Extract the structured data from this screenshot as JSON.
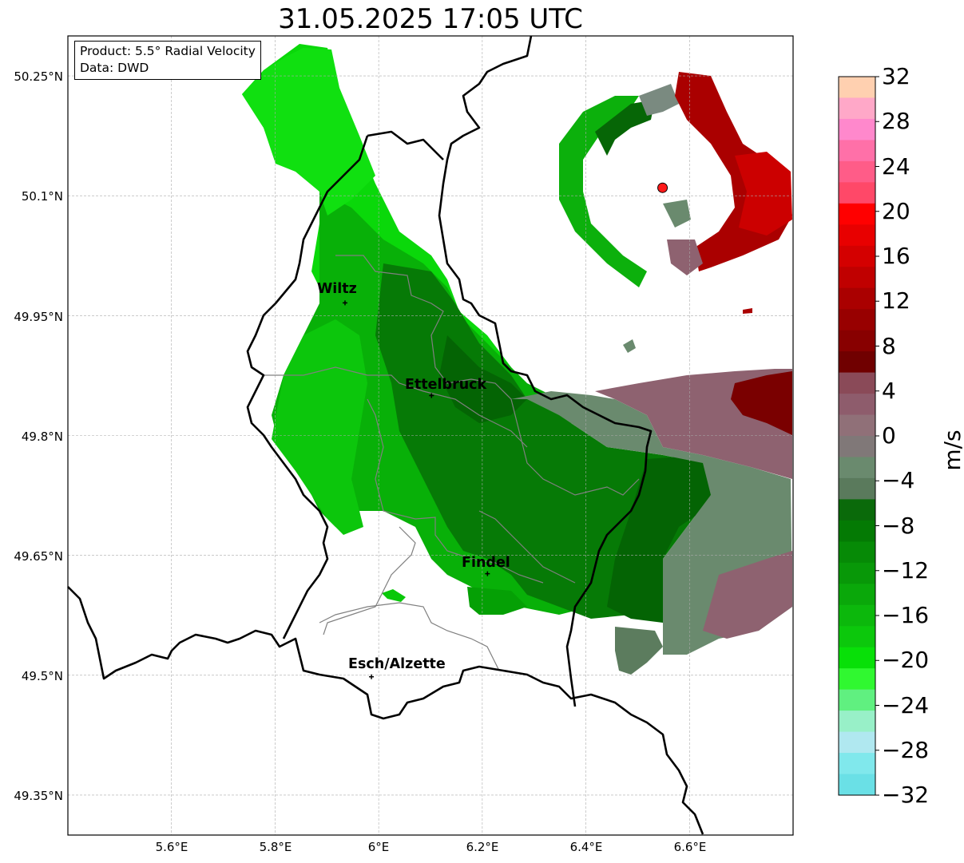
{
  "title": "31.05.2025 17:05 UTC",
  "info": {
    "product": "Product: 5.5° Radial Velocity",
    "data": "Data: DWD"
  },
  "cities": [
    {
      "name": "Wiltz",
      "lon": 5.935,
      "lat": 49.966
    },
    {
      "name": "Ettelbruck",
      "lon": 6.102,
      "lat": 49.85
    },
    {
      "name": "Findel",
      "lon": 6.21,
      "lat": 49.627
    },
    {
      "name": "Esch/Alzette",
      "lon": 5.986,
      "lat": 49.498
    }
  ],
  "radar_site": {
    "lon": 6.548,
    "lat": 50.11
  },
  "map_extent": {
    "lon_min": 5.4,
    "lon_max": 6.8,
    "lat_min": 49.3,
    "lat_max": 50.3
  },
  "lat_ticks": [
    {
      "value": 50.25,
      "label": "50.25°N"
    },
    {
      "value": 50.1,
      "label": "50.1°N"
    },
    {
      "value": 49.95,
      "label": "49.95°N"
    },
    {
      "value": 49.8,
      "label": "49.8°N"
    },
    {
      "value": 49.65,
      "label": "49.65°N"
    },
    {
      "value": 49.5,
      "label": "49.5°N"
    },
    {
      "value": 49.35,
      "label": "49.35°N"
    }
  ],
  "lon_ticks": [
    {
      "value": 5.6,
      "label": "5.6°E"
    },
    {
      "value": 5.8,
      "label": "5.8°E"
    },
    {
      "value": 6.0,
      "label": "6°E"
    },
    {
      "value": 6.2,
      "label": "6.2°E"
    },
    {
      "value": 6.4,
      "label": "6.4°E"
    },
    {
      "value": 6.6,
      "label": "6.6°E"
    }
  ],
  "grid": true,
  "colorbar": {
    "unit": "m/s",
    "min": -32,
    "max": 32,
    "tick_labels": [
      "32",
      "28",
      "24",
      "20",
      "16",
      "12",
      "8",
      "4",
      "0",
      "−4",
      "−8",
      "−12",
      "−16",
      "−20",
      "−24",
      "−28",
      "−32"
    ],
    "colors_top_to_bottom": [
      "#ffd0b0",
      "#ffa8c8",
      "#ff88cc",
      "#ff70a8",
      "#ff5c88",
      "#ff4868",
      "#ff0000",
      "#e80000",
      "#d40000",
      "#c00000",
      "#aa0000",
      "#980000",
      "#880000",
      "#700000",
      "#8a4a58",
      "#8e5c6c",
      "#907078",
      "#807878",
      "#6a8a6e",
      "#5a7a5c",
      "#0a6a0a",
      "#047a04",
      "#068a06",
      "#089808",
      "#0aa80a",
      "#0cb80c",
      "#0cc80c",
      "#08e008",
      "#30f830",
      "#60f080",
      "#98f0c8",
      "#b0e8f0",
      "#80e8ec",
      "#6ae0e6"
    ]
  }
}
